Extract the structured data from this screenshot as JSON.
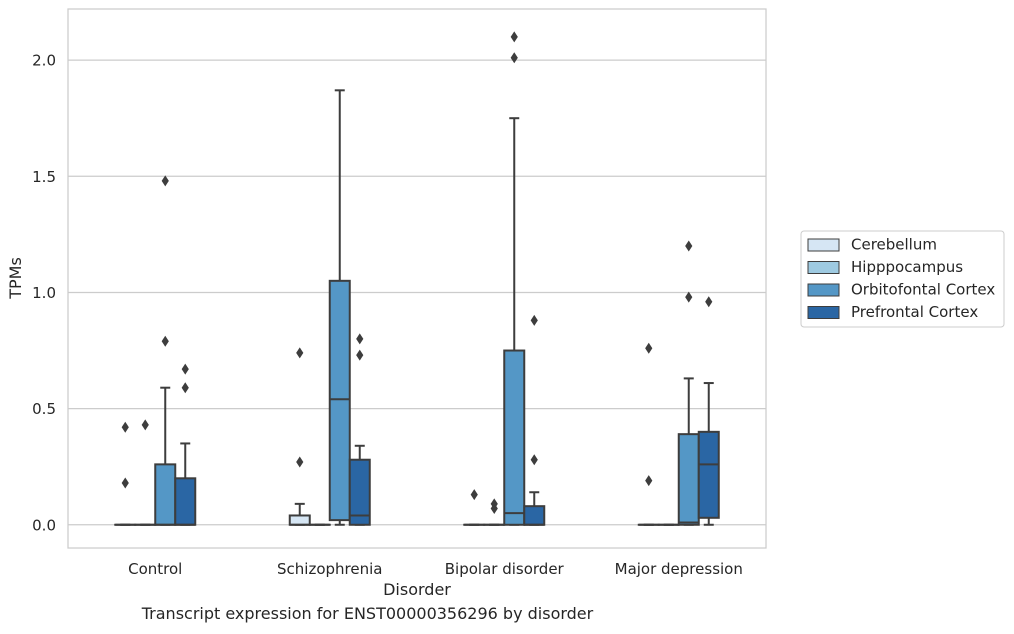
{
  "caption": "Transcript expression for ENST00000356296 by disorder",
  "chart_data": {
    "type": "box",
    "xlabel": "Disorder",
    "ylabel": "TPMs",
    "ylim": [
      -0.1,
      2.22
    ],
    "yticks": [
      0.0,
      0.5,
      1.0,
      1.5,
      2.0
    ],
    "ytick_labels": [
      "0.0",
      "0.5",
      "1.0",
      "1.5",
      "2.0"
    ],
    "grid": "horizontal",
    "legend_position": "right",
    "categories": [
      "Control",
      "Schizophrenia",
      "Bipolar disorder",
      "Major depression"
    ],
    "series": [
      {
        "name": "Cerebellum",
        "color": "#d6e6f4",
        "boxes": [
          {
            "q1": 0.0,
            "median": 0.0,
            "q3": 0.0,
            "whislo": 0.0,
            "whishi": 0.0,
            "fliers": [
              0.18,
              0.42
            ]
          },
          {
            "q1": 0.0,
            "median": 0.0,
            "q3": 0.04,
            "whislo": 0.0,
            "whishi": 0.09,
            "fliers": [
              0.27,
              0.74
            ]
          },
          {
            "q1": 0.0,
            "median": 0.0,
            "q3": 0.0,
            "whislo": 0.0,
            "whishi": 0.0,
            "fliers": [
              0.13
            ]
          },
          {
            "q1": 0.0,
            "median": 0.0,
            "q3": 0.0,
            "whislo": 0.0,
            "whishi": 0.0,
            "fliers": [
              0.19,
              0.76
            ]
          }
        ]
      },
      {
        "name": "Hipppocampus",
        "color": "#9ecae1",
        "boxes": [
          {
            "q1": 0.0,
            "median": 0.0,
            "q3": 0.0,
            "whislo": 0.0,
            "whishi": 0.0,
            "fliers": [
              0.43
            ]
          },
          {
            "q1": 0.0,
            "median": 0.0,
            "q3": 0.0,
            "whislo": 0.0,
            "whishi": 0.0,
            "fliers": []
          },
          {
            "q1": 0.0,
            "median": 0.0,
            "q3": 0.0,
            "whislo": 0.0,
            "whishi": 0.0,
            "fliers": [
              0.07,
              0.09
            ]
          },
          {
            "q1": 0.0,
            "median": 0.0,
            "q3": 0.0,
            "whislo": 0.0,
            "whishi": 0.0,
            "fliers": []
          }
        ]
      },
      {
        "name": "Orbitofontal Cortex",
        "color": "#5497c6",
        "boxes": [
          {
            "q1": 0.0,
            "median": 0.0,
            "q3": 0.26,
            "whislo": 0.0,
            "whishi": 0.59,
            "fliers": [
              0.79,
              1.48
            ]
          },
          {
            "q1": 0.02,
            "median": 0.54,
            "q3": 1.05,
            "whislo": 0.0,
            "whishi": 1.87,
            "fliers": []
          },
          {
            "q1": 0.0,
            "median": 0.05,
            "q3": 0.75,
            "whislo": 0.0,
            "whishi": 1.75,
            "fliers": [
              2.01,
              2.1
            ]
          },
          {
            "q1": 0.0,
            "median": 0.01,
            "q3": 0.39,
            "whislo": 0.0,
            "whishi": 0.63,
            "fliers": [
              0.98,
              1.2
            ]
          }
        ]
      },
      {
        "name": "Prefrontal Cortex",
        "color": "#2a66a4",
        "boxes": [
          {
            "q1": 0.0,
            "median": 0.0,
            "q3": 0.2,
            "whislo": 0.0,
            "whishi": 0.35,
            "fliers": [
              0.59,
              0.67
            ]
          },
          {
            "q1": 0.0,
            "median": 0.04,
            "q3": 0.28,
            "whislo": 0.0,
            "whishi": 0.34,
            "fliers": [
              0.73,
              0.8
            ]
          },
          {
            "q1": 0.0,
            "median": 0.0,
            "q3": 0.08,
            "whislo": 0.0,
            "whishi": 0.14,
            "fliers": [
              0.28,
              0.88
            ]
          },
          {
            "q1": 0.03,
            "median": 0.26,
            "q3": 0.4,
            "whislo": 0.0,
            "whishi": 0.61,
            "fliers": [
              0.96
            ]
          }
        ]
      }
    ]
  }
}
